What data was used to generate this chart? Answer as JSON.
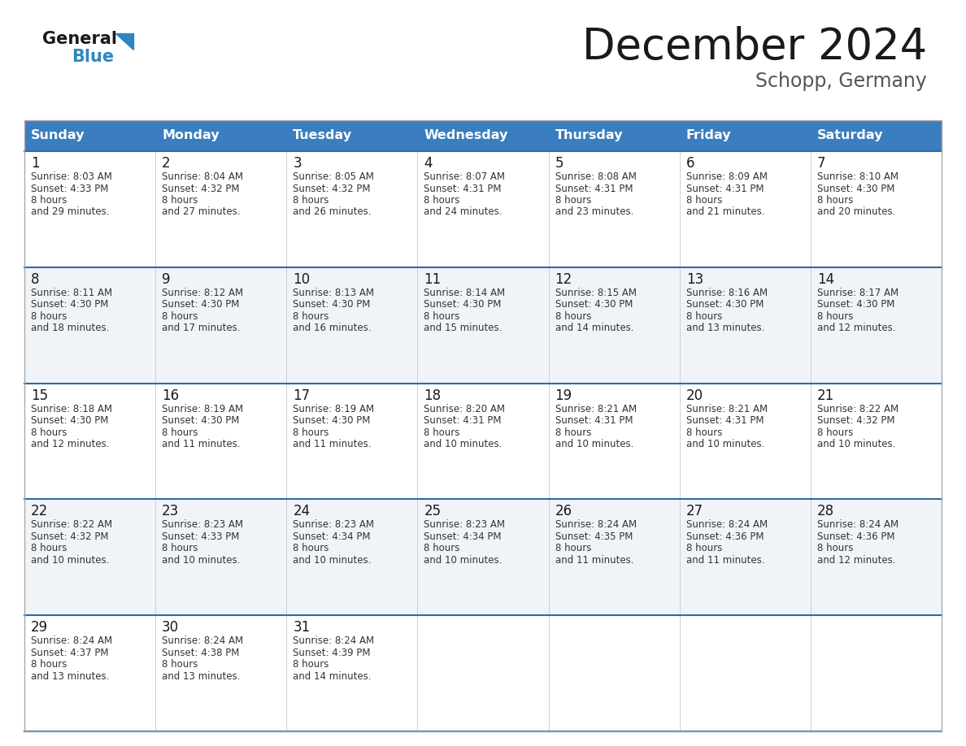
{
  "title": "December 2024",
  "subtitle": "Schopp, Germany",
  "header_color": "#3a7ebf",
  "header_text_color": "#ffffff",
  "days_of_week": [
    "Sunday",
    "Monday",
    "Tuesday",
    "Wednesday",
    "Thursday",
    "Friday",
    "Saturday"
  ],
  "cell_bg_even": "#ffffff",
  "cell_bg_odd": "#f0f4f8",
  "divider_color": "#2e6da4",
  "text_color": "#333333",
  "logo_general_color": "#1a1a1a",
  "logo_blue_color": "#2e86c1",
  "weeks": [
    [
      {
        "day": 1,
        "sunrise": "8:03 AM",
        "sunset": "4:33 PM",
        "daylight": "8 hours\nand 29 minutes."
      },
      {
        "day": 2,
        "sunrise": "8:04 AM",
        "sunset": "4:32 PM",
        "daylight": "8 hours\nand 27 minutes."
      },
      {
        "day": 3,
        "sunrise": "8:05 AM",
        "sunset": "4:32 PM",
        "daylight": "8 hours\nand 26 minutes."
      },
      {
        "day": 4,
        "sunrise": "8:07 AM",
        "sunset": "4:31 PM",
        "daylight": "8 hours\nand 24 minutes."
      },
      {
        "day": 5,
        "sunrise": "8:08 AM",
        "sunset": "4:31 PM",
        "daylight": "8 hours\nand 23 minutes."
      },
      {
        "day": 6,
        "sunrise": "8:09 AM",
        "sunset": "4:31 PM",
        "daylight": "8 hours\nand 21 minutes."
      },
      {
        "day": 7,
        "sunrise": "8:10 AM",
        "sunset": "4:30 PM",
        "daylight": "8 hours\nand 20 minutes."
      }
    ],
    [
      {
        "day": 8,
        "sunrise": "8:11 AM",
        "sunset": "4:30 PM",
        "daylight": "8 hours\nand 18 minutes."
      },
      {
        "day": 9,
        "sunrise": "8:12 AM",
        "sunset": "4:30 PM",
        "daylight": "8 hours\nand 17 minutes."
      },
      {
        "day": 10,
        "sunrise": "8:13 AM",
        "sunset": "4:30 PM",
        "daylight": "8 hours\nand 16 minutes."
      },
      {
        "day": 11,
        "sunrise": "8:14 AM",
        "sunset": "4:30 PM",
        "daylight": "8 hours\nand 15 minutes."
      },
      {
        "day": 12,
        "sunrise": "8:15 AM",
        "sunset": "4:30 PM",
        "daylight": "8 hours\nand 14 minutes."
      },
      {
        "day": 13,
        "sunrise": "8:16 AM",
        "sunset": "4:30 PM",
        "daylight": "8 hours\nand 13 minutes."
      },
      {
        "day": 14,
        "sunrise": "8:17 AM",
        "sunset": "4:30 PM",
        "daylight": "8 hours\nand 12 minutes."
      }
    ],
    [
      {
        "day": 15,
        "sunrise": "8:18 AM",
        "sunset": "4:30 PM",
        "daylight": "8 hours\nand 12 minutes."
      },
      {
        "day": 16,
        "sunrise": "8:19 AM",
        "sunset": "4:30 PM",
        "daylight": "8 hours\nand 11 minutes."
      },
      {
        "day": 17,
        "sunrise": "8:19 AM",
        "sunset": "4:30 PM",
        "daylight": "8 hours\nand 11 minutes."
      },
      {
        "day": 18,
        "sunrise": "8:20 AM",
        "sunset": "4:31 PM",
        "daylight": "8 hours\nand 10 minutes."
      },
      {
        "day": 19,
        "sunrise": "8:21 AM",
        "sunset": "4:31 PM",
        "daylight": "8 hours\nand 10 minutes."
      },
      {
        "day": 20,
        "sunrise": "8:21 AM",
        "sunset": "4:31 PM",
        "daylight": "8 hours\nand 10 minutes."
      },
      {
        "day": 21,
        "sunrise": "8:22 AM",
        "sunset": "4:32 PM",
        "daylight": "8 hours\nand 10 minutes."
      }
    ],
    [
      {
        "day": 22,
        "sunrise": "8:22 AM",
        "sunset": "4:32 PM",
        "daylight": "8 hours\nand 10 minutes."
      },
      {
        "day": 23,
        "sunrise": "8:23 AM",
        "sunset": "4:33 PM",
        "daylight": "8 hours\nand 10 minutes."
      },
      {
        "day": 24,
        "sunrise": "8:23 AM",
        "sunset": "4:34 PM",
        "daylight": "8 hours\nand 10 minutes."
      },
      {
        "day": 25,
        "sunrise": "8:23 AM",
        "sunset": "4:34 PM",
        "daylight": "8 hours\nand 10 minutes."
      },
      {
        "day": 26,
        "sunrise": "8:24 AM",
        "sunset": "4:35 PM",
        "daylight": "8 hours\nand 11 minutes."
      },
      {
        "day": 27,
        "sunrise": "8:24 AM",
        "sunset": "4:36 PM",
        "daylight": "8 hours\nand 11 minutes."
      },
      {
        "day": 28,
        "sunrise": "8:24 AM",
        "sunset": "4:36 PM",
        "daylight": "8 hours\nand 12 minutes."
      }
    ],
    [
      {
        "day": 29,
        "sunrise": "8:24 AM",
        "sunset": "4:37 PM",
        "daylight": "8 hours\nand 13 minutes."
      },
      {
        "day": 30,
        "sunrise": "8:24 AM",
        "sunset": "4:38 PM",
        "daylight": "8 hours\nand 13 minutes."
      },
      {
        "day": 31,
        "sunrise": "8:24 AM",
        "sunset": "4:39 PM",
        "daylight": "8 hours\nand 14 minutes."
      },
      null,
      null,
      null,
      null
    ]
  ]
}
